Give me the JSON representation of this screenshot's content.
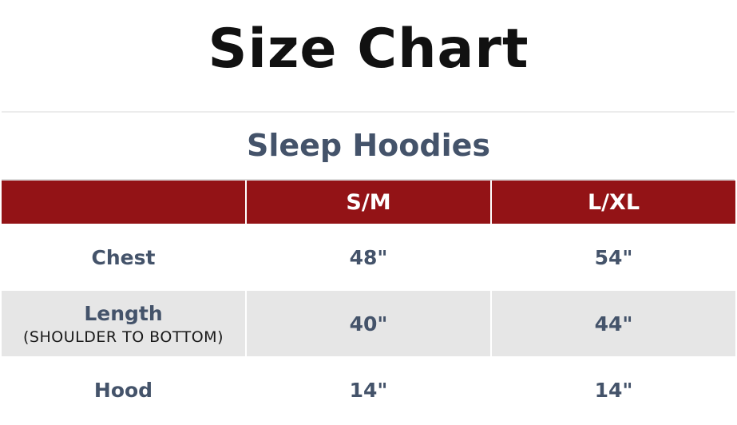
{
  "title": "Size Chart",
  "subtitle": "Sleep Hoodies",
  "colors": {
    "header": "#931316",
    "text": "#44536a",
    "stripe": "#e6e6e6"
  },
  "table": {
    "headers": [
      "",
      "S/M",
      "L/XL"
    ],
    "rows": [
      {
        "label": "Chest",
        "note": "",
        "values": [
          "48\"",
          "54\""
        ]
      },
      {
        "label": "Length",
        "note": "(SHOULDER TO BOTTOM)",
        "values": [
          "40\"",
          "44\""
        ]
      },
      {
        "label": "Hood",
        "note": "",
        "values": [
          "14\"",
          "14\""
        ]
      }
    ]
  }
}
